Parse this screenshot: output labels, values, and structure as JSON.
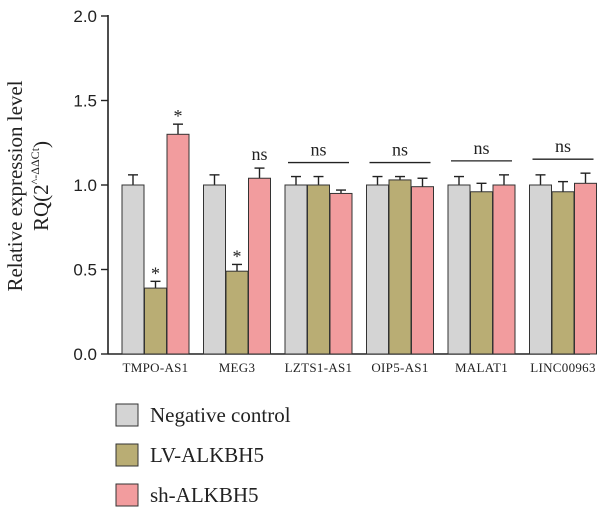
{
  "chart_data": {
    "type": "bar",
    "ylabel": "Relative expression level",
    "ylabel_line2": "RQ(2^-ΔΔCt)",
    "ylim": [
      0,
      2.0
    ],
    "yticks": [
      "0.0",
      "0.5",
      "1.0",
      "1.5",
      "2.0"
    ],
    "ytick_values": [
      0,
      0.5,
      1.0,
      1.5,
      2.0
    ],
    "categories": [
      "TMPO-AS1",
      "MEG3",
      "LZTS1-AS1",
      "OIP5-AS1",
      "MALAT1",
      "LINC00963"
    ],
    "series": [
      {
        "name": "Negative control",
        "color": "#d4d4d4",
        "values": [
          1.0,
          1.0,
          1.0,
          1.0,
          1.0,
          1.0
        ],
        "errors": [
          0.06,
          0.06,
          0.05,
          0.05,
          0.05,
          0.06
        ]
      },
      {
        "name": "LV-ALKBH5",
        "color": "#b9ad74",
        "values": [
          0.39,
          0.49,
          1.0,
          1.03,
          0.96,
          0.96
        ],
        "errors": [
          0.04,
          0.04,
          0.05,
          0.02,
          0.05,
          0.06
        ]
      },
      {
        "name": "sh-ALKBH5",
        "color": "#f29c9e",
        "values": [
          1.3,
          1.04,
          0.95,
          0.99,
          1.0,
          1.01
        ],
        "errors": [
          0.06,
          0.06,
          0.02,
          0.05,
          0.06,
          0.06
        ]
      }
    ],
    "annotations": [
      {
        "category": 0,
        "series": 1,
        "text": "*"
      },
      {
        "category": 0,
        "series": 2,
        "text": "*"
      },
      {
        "category": 1,
        "series": 1,
        "text": "*"
      },
      {
        "category": 1,
        "series": 2,
        "text": "ns"
      },
      {
        "category": 2,
        "text": "ns",
        "bracket": true
      },
      {
        "category": 3,
        "text": "ns",
        "bracket": true
      },
      {
        "category": 4,
        "text": "ns",
        "bracket": true
      },
      {
        "category": 5,
        "text": "ns",
        "bracket": true
      }
    ],
    "legend_position": "bottom-left",
    "grid": false
  }
}
